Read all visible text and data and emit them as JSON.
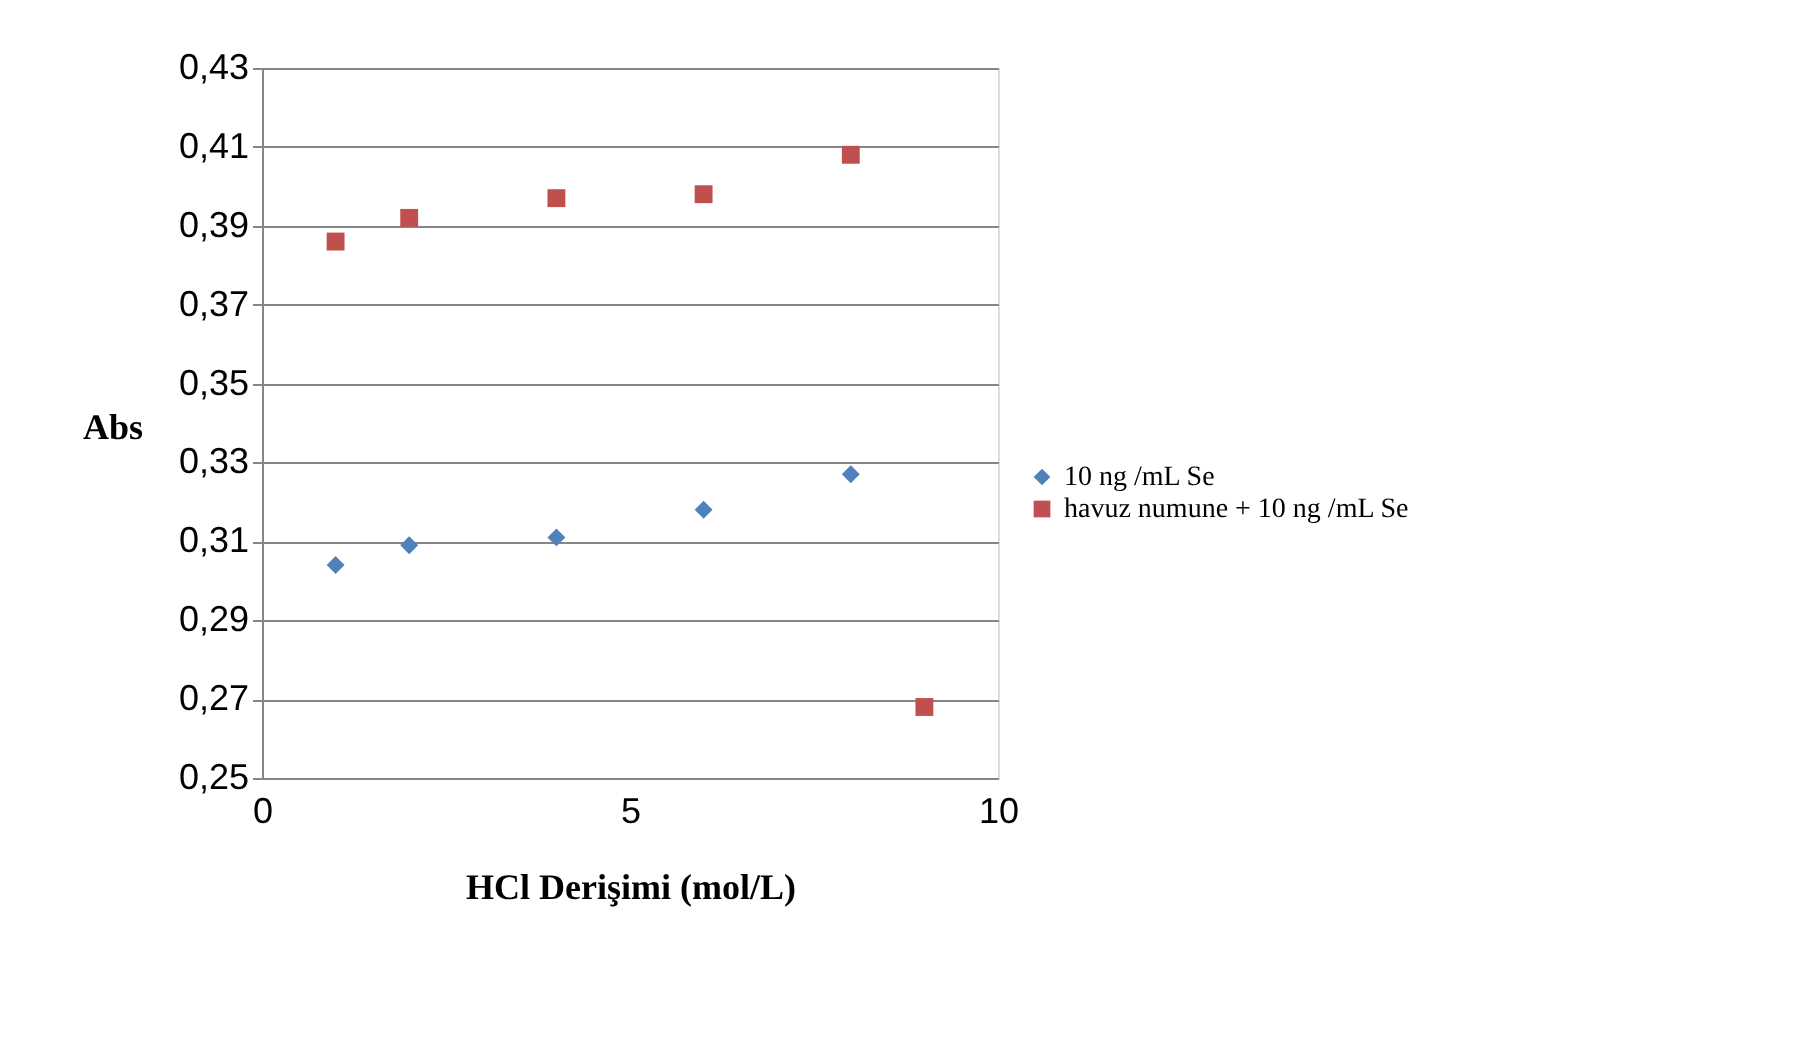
{
  "chart_data": {
    "type": "scatter",
    "xlabel": "HCl Derişimi (mol/L)",
    "ylabel": "Abs",
    "xlim": [
      0,
      10
    ],
    "xticks": [
      0,
      5,
      10
    ],
    "ylim": [
      0.25,
      0.43
    ],
    "yticks": [
      {
        "value": 0.25,
        "label": "0,25"
      },
      {
        "value": 0.27,
        "label": "0,27"
      },
      {
        "value": 0.29,
        "label": "0,29"
      },
      {
        "value": 0.31,
        "label": "0,31"
      },
      {
        "value": 0.33,
        "label": "0,33"
      },
      {
        "value": 0.35,
        "label": "0,35"
      },
      {
        "value": 0.37,
        "label": "0,37"
      },
      {
        "value": 0.39,
        "label": "0,39"
      },
      {
        "value": 0.41,
        "label": "0,41"
      },
      {
        "value": 0.43,
        "label": "0,43"
      }
    ],
    "grid": "y",
    "legend": "right",
    "series": [
      {
        "name": "10  ng /mL Se",
        "color": "#4f81bd",
        "marker": "diamond",
        "x": [
          1,
          2,
          4,
          6,
          8
        ],
        "values": [
          0.304,
          0.309,
          0.311,
          0.318,
          0.327
        ]
      },
      {
        "name": "havuz numune + 10 ng /mL Se",
        "color": "#c0504d",
        "marker": "square",
        "x": [
          1,
          2,
          4,
          6,
          8,
          9
        ],
        "values": [
          0.386,
          0.392,
          0.397,
          0.398,
          0.408,
          0.268
        ]
      }
    ]
  }
}
